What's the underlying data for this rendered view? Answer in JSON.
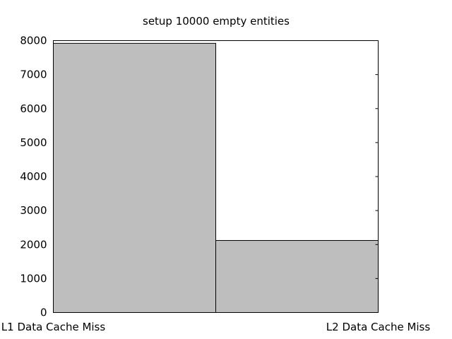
{
  "chart_data": {
    "type": "bar",
    "title": "setup 10000 empty entities",
    "xlabel": "",
    "ylabel": "",
    "categories": [
      "L1 Data Cache Miss",
      "L2 Data Cache Miss"
    ],
    "values": [
      7920,
      2120
    ],
    "ylim": [
      0,
      8000
    ],
    "yticks": [
      0,
      1000,
      2000,
      3000,
      4000,
      5000,
      6000,
      7000,
      8000
    ],
    "grid": false,
    "legend": "none",
    "bar_color": "#bebebe",
    "edge_color": "#000000"
  }
}
